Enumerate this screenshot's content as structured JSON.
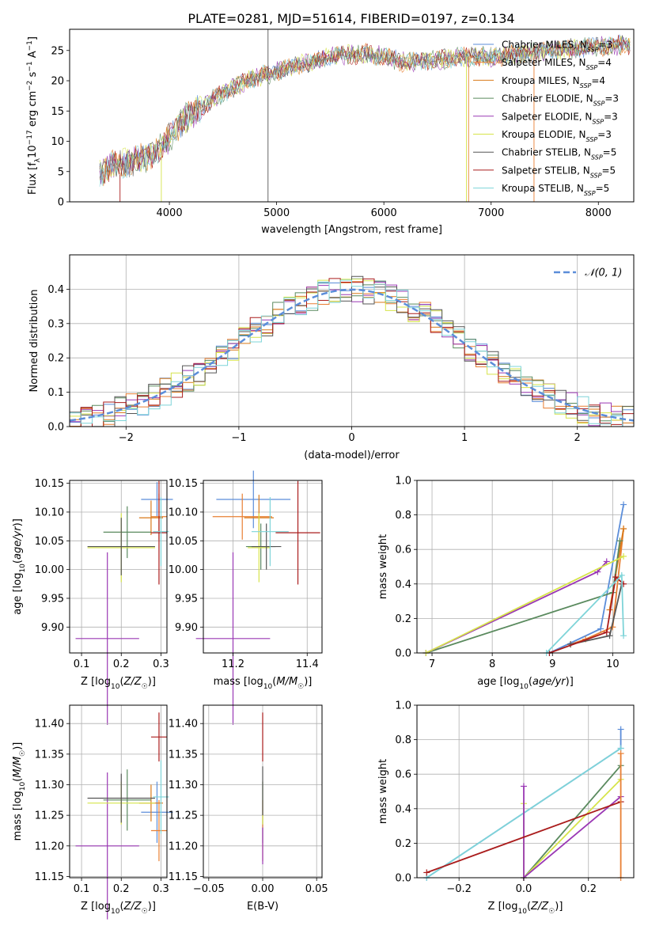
{
  "figure": {
    "title": "PLATE=0281, MJD=51614, FIBERID=0197, z=0.134"
  },
  "series_styles": [
    {
      "name": "Chabrier MILES, N_SSP=3",
      "color": "#5b8dd9"
    },
    {
      "name": "Salpeter MILES, N_SSP=4",
      "color": "#e87f33"
    },
    {
      "name": "Kroupa MILES, N_SSP=4",
      "color": "#d97a1a"
    },
    {
      "name": "Chabrier ELODIE, N_SSP=3",
      "color": "#5a8a5e"
    },
    {
      "name": "Salpeter ELODIE, N_SSP=3",
      "color": "#9a38b4"
    },
    {
      "name": "Kroupa ELODIE, N_SSP=3",
      "color": "#d6e44a"
    },
    {
      "name": "Chabrier STELIB, N_SSP=5",
      "color": "#555555"
    },
    {
      "name": "Salpeter STELIB, N_SSP=5",
      "color": "#aa1c1c"
    },
    {
      "name": "Kroupa STELIB, N_SSP=5",
      "color": "#7ed4d8"
    }
  ],
  "chart_data": [
    {
      "id": "spectrum",
      "type": "line",
      "xlabel": "wavelength [Angstrom, rest frame]",
      "ylabel": "Flux [f_λ10^-17 erg cm^-2 s^-1 A^-1]",
      "xlim": [
        3070,
        8330
      ],
      "ylim": [
        0,
        28.5
      ],
      "xticks": [
        4000,
        5000,
        6000,
        7000,
        8000
      ],
      "yticks": [
        0,
        5,
        10,
        15,
        20,
        25
      ],
      "grid": false,
      "legend_position": "upper-right",
      "legend": [
        {
          "prefix": "Chabrier MILES, N",
          "sub": "SSP",
          "suffix": "=3"
        },
        {
          "prefix": "Salpeter MILES, N",
          "sub": "SSP",
          "suffix": "=4"
        },
        {
          "prefix": "Kroupa MILES, N",
          "sub": "SSP",
          "suffix": "=4"
        },
        {
          "prefix": "Chabrier ELODIE, N",
          "sub": "SSP",
          "suffix": "=3"
        },
        {
          "prefix": "Salpeter ELODIE, N",
          "sub": "SSP",
          "suffix": "=3"
        },
        {
          "prefix": "Kroupa ELODIE, N",
          "sub": "SSP",
          "suffix": "=3"
        },
        {
          "prefix": "Chabrier STELIB, N",
          "sub": "SSP",
          "suffix": "=5"
        },
        {
          "prefix": "Salpeter STELIB, N",
          "sub": "SSP",
          "suffix": "=5"
        },
        {
          "prefix": "Kroupa STELIB, N",
          "sub": "SSP",
          "suffix": "=5"
        }
      ],
      "continuum": {
        "x": [
          3350,
          3450,
          3600,
          3750,
          3900,
          4000,
          4100,
          4200,
          4300,
          4400,
          4600,
          4800,
          5000,
          5200,
          5500,
          5800,
          6000,
          6200,
          6500,
          6800,
          7000,
          7300,
          7600,
          7900,
          8300
        ],
        "y": [
          4.5,
          5.8,
          6.5,
          7.2,
          8.5,
          10.5,
          13,
          14.5,
          15.5,
          17,
          19,
          20.5,
          21.5,
          22.5,
          24,
          24.5,
          24,
          23,
          23.5,
          24,
          24,
          24.5,
          25,
          25.5,
          26
        ]
      },
      "spikes": [
        {
          "x": 3540,
          "y_from": 4.5,
          "y_to": 0,
          "series": 7
        },
        {
          "x": 3925,
          "y_from": 9,
          "y_to": 0,
          "series": 5
        },
        {
          "x": 4920,
          "y_from": 20,
          "y_to": 0,
          "series": 6
        },
        {
          "x": 4920,
          "y_from": 20,
          "y_to": 28.5,
          "series": 6
        },
        {
          "x": 6770,
          "y_from": 24,
          "y_to": 0,
          "series": 5
        },
        {
          "x": 6790,
          "y_from": 24,
          "y_to": 0,
          "series": 1
        },
        {
          "x": 7400,
          "y_from": 24.5,
          "y_to": 0,
          "series": 1
        }
      ]
    },
    {
      "id": "residual-histogram",
      "type": "bar",
      "xlabel": "(data-model)/error",
      "ylabel": "Normed distribution",
      "xlim": [
        -2.5,
        2.5
      ],
      "ylim": [
        0,
        0.5
      ],
      "xticks": [
        -2,
        -1,
        0,
        1,
        2
      ],
      "yticks": [
        0.0,
        0.1,
        0.2,
        0.3,
        0.4
      ],
      "grid": true,
      "legend_position": "upper-right",
      "legend": [
        {
          "label": "𝒩(0, 1)"
        }
      ],
      "bin_width": 0.1,
      "approx_profile": "normal(0,1) with per-series scatter of about ±0.04"
    },
    {
      "id": "age-vs-Z",
      "type": "scatter",
      "xlabel": "Z [log10(Z/Z☉)]",
      "ylabel": "age  [log10(age/yr)]",
      "xlim": [
        0.07,
        0.315
      ],
      "ylim": [
        9.855,
        10.155
      ],
      "xticks": [
        0.1,
        0.2,
        0.3
      ],
      "yticks": [
        9.9,
        9.95,
        10.0,
        10.05,
        10.1,
        10.15
      ],
      "grid": true,
      "errorbars": [
        {
          "series": 0,
          "x": 0.29,
          "xerr": 0.04,
          "y": 10.122,
          "yerr": 0.03
        },
        {
          "series": 1,
          "x": 0.295,
          "xerr": 0.02,
          "y": 10.092,
          "yerr": 0.04
        },
        {
          "series": 2,
          "x": 0.275,
          "xerr": 0.03,
          "y": 10.09,
          "yerr": 0.03
        },
        {
          "series": 3,
          "x": 0.215,
          "xerr": 0.06,
          "y": 10.065,
          "yerr": 0.045
        },
        {
          "series": 4,
          "x": 0.165,
          "xerr": 0.08,
          "y": 9.88,
          "yerr": 0.15
        },
        {
          "series": 5,
          "x": 0.2,
          "xerr": 0.085,
          "y": 10.038,
          "yerr": 0.06
        },
        {
          "series": 6,
          "x": 0.2,
          "xerr": 0.085,
          "y": 10.04,
          "yerr": 0.05
        },
        {
          "series": 7,
          "x": 0.295,
          "xerr": 0.02,
          "y": 10.064,
          "yerr": 0.09
        },
        {
          "series": 8,
          "x": 0.3,
          "xerr": 0.02,
          "y": 10.066,
          "yerr": 0.06
        }
      ]
    },
    {
      "id": "age-vs-mass",
      "type": "scatter",
      "xlabel": "mass [log10(M/M☉)]",
      "ylabel": "",
      "xlim": [
        11.12,
        11.44
      ],
      "ylim": [
        9.855,
        10.155
      ],
      "xticks": [
        11.2,
        11.4
      ],
      "yticks": [
        9.9,
        9.95,
        10.0,
        10.05,
        10.1,
        10.15
      ],
      "grid": true,
      "errorbars": [
        {
          "series": 0,
          "x": 11.255,
          "xerr": 0.1,
          "y": 10.122,
          "yerr": 0.05
        },
        {
          "series": 1,
          "x": 11.225,
          "xerr": 0.08,
          "y": 10.092,
          "yerr": 0.04
        },
        {
          "series": 2,
          "x": 11.27,
          "xerr": 0.04,
          "y": 10.09,
          "yerr": 0.04
        },
        {
          "series": 3,
          "x": 11.275,
          "xerr": 0.04,
          "y": 10.04,
          "yerr": 0.04
        },
        {
          "series": 4,
          "x": 11.2,
          "xerr": 0.1,
          "y": 9.88,
          "yerr": 0.15
        },
        {
          "series": 5,
          "x": 11.27,
          "xerr": 0.03,
          "y": 10.038,
          "yerr": 0.06
        },
        {
          "series": 6,
          "x": 11.29,
          "xerr": 0.04,
          "y": 10.04,
          "yerr": 0.04
        },
        {
          "series": 7,
          "x": 11.375,
          "xerr": 0.06,
          "y": 10.064,
          "yerr": 0.09
        },
        {
          "series": 8,
          "x": 11.3,
          "xerr": 0.05,
          "y": 10.066,
          "yerr": 0.06
        }
      ]
    },
    {
      "id": "mass-weight-vs-age",
      "type": "line",
      "xlabel": "age  [log10(age/yr)]",
      "ylabel": "mass weight",
      "xlim": [
        6.75,
        10.35
      ],
      "ylim": [
        0,
        1.0
      ],
      "xticks": [
        7,
        8,
        9,
        10
      ],
      "yticks": [
        0.0,
        0.2,
        0.4,
        0.6,
        0.8,
        1.0
      ],
      "grid": true,
      "series": [
        {
          "series": 0,
          "x": [
            8.95,
            9.8,
            10.18
          ],
          "y": [
            0.0,
            0.14,
            0.86
          ]
        },
        {
          "series": 1,
          "x": [
            9.3,
            9.55,
            10.0,
            10.18
          ],
          "y": [
            0.05,
            0.08,
            0.15,
            0.72
          ]
        },
        {
          "series": 2,
          "x": [
            9.95,
            10.18
          ],
          "y": [
            0.25,
            0.72
          ]
        },
        {
          "series": 3,
          "x": [
            6.9,
            10.0,
            10.12
          ],
          "y": [
            0.0,
            0.35,
            0.65
          ]
        },
        {
          "series": 4,
          "x": [
            6.9,
            9.75,
            9.9
          ],
          "y": [
            0.0,
            0.47,
            0.53
          ]
        },
        {
          "series": 5,
          "x": [
            6.9,
            10.18
          ],
          "y": [
            0.0,
            0.56
          ]
        },
        {
          "series": 6,
          "x": [
            9.3,
            9.95,
            10.15
          ],
          "y": [
            0.05,
            0.1,
            0.4
          ]
        },
        {
          "series": 7,
          "x": [
            8.95,
            9.9,
            10.05,
            10.18
          ],
          "y": [
            0.0,
            0.12,
            0.44,
            0.4
          ]
        },
        {
          "series": 8,
          "x": [
            8.9,
            10.15,
            10.18
          ],
          "y": [
            0.0,
            0.45,
            0.1
          ]
        }
      ]
    },
    {
      "id": "mass-vs-Z",
      "type": "scatter",
      "xlabel": "Z [log10(Z/Z☉)]",
      "ylabel": "mass [log10(M/M☉)]",
      "xlim": [
        0.07,
        0.315
      ],
      "ylim": [
        11.148,
        11.43
      ],
      "xticks": [
        0.1,
        0.2,
        0.3
      ],
      "yticks": [
        11.15,
        11.2,
        11.25,
        11.3,
        11.35,
        11.4
      ],
      "grid": true,
      "errorbars": [
        {
          "series": 0,
          "x": 0.29,
          "xerr": 0.04,
          "y": 11.255,
          "yerr": 0.05
        },
        {
          "series": 1,
          "x": 0.295,
          "xerr": 0.02,
          "y": 11.225,
          "yerr": 0.05
        },
        {
          "series": 2,
          "x": 0.275,
          "xerr": 0.03,
          "y": 11.27,
          "yerr": 0.03
        },
        {
          "series": 3,
          "x": 0.215,
          "xerr": 0.06,
          "y": 11.275,
          "yerr": 0.05
        },
        {
          "series": 4,
          "x": 0.165,
          "xerr": 0.08,
          "y": 11.2,
          "yerr": 0.12
        },
        {
          "series": 5,
          "x": 0.2,
          "xerr": 0.085,
          "y": 11.27,
          "yerr": 0.035
        },
        {
          "series": 6,
          "x": 0.2,
          "xerr": 0.085,
          "y": 11.278,
          "yerr": 0.04
        },
        {
          "series": 7,
          "x": 0.295,
          "xerr": 0.02,
          "y": 11.378,
          "yerr": 0.04
        },
        {
          "series": 8,
          "x": 0.3,
          "xerr": 0.02,
          "y": 11.28,
          "yerr": 0.06
        }
      ]
    },
    {
      "id": "mass-vs-EBV",
      "type": "scatter",
      "xlabel": "E(B-V)",
      "ylabel": "",
      "xlim": [
        -0.055,
        0.055
      ],
      "ylim": [
        11.148,
        11.43
      ],
      "xticks": [
        -0.05,
        0.0,
        0.05
      ],
      "xtick_labels": [
        "−0.05",
        "0.00",
        "0.05"
      ],
      "yticks": [
        11.15,
        11.2,
        11.25,
        11.3,
        11.35,
        11.4
      ],
      "grid": true,
      "errorbars": [
        {
          "series": 0,
          "x": 0.0,
          "xerr": 0.0,
          "y": 11.255,
          "yerr": 0.05
        },
        {
          "series": 1,
          "x": 0.0,
          "xerr": 0.0,
          "y": 11.225,
          "yerr": 0.05
        },
        {
          "series": 4,
          "x": 0.0,
          "xerr": 0.0,
          "y": 11.2,
          "yerr": 0.03
        },
        {
          "series": 5,
          "x": 0.0,
          "xerr": 0.0,
          "y": 11.27,
          "yerr": 0.035
        },
        {
          "series": 7,
          "x": 0.0,
          "xerr": 0.0,
          "y": 11.378,
          "yerr": 0.04
        },
        {
          "series": 6,
          "x": 0.0,
          "xerr": 0.0,
          "y": 11.29,
          "yerr": 0.04
        }
      ]
    },
    {
      "id": "mass-weight-vs-Z",
      "type": "line",
      "xlabel": "Z [log10(Z/Z☉)]",
      "ylabel": "mass weight",
      "xlim": [
        -0.33,
        0.34
      ],
      "ylim": [
        0,
        1.0
      ],
      "xticks": [
        -0.2,
        0.0,
        0.2
      ],
      "xtick_labels": [
        "−0.2",
        "0.0",
        "0.2"
      ],
      "yticks": [
        0.0,
        0.2,
        0.4,
        0.6,
        0.8,
        1.0
      ],
      "grid": true,
      "series": [
        {
          "series": 0,
          "x": [
            -0.3,
            0.3,
            0.3
          ],
          "y": [
            0.0,
            0.75,
            0.86
          ]
        },
        {
          "series": 8,
          "x": [
            -0.3,
            0.3
          ],
          "y": [
            0.0,
            0.75
          ]
        },
        {
          "series": 3,
          "x": [
            0.0,
            0.3
          ],
          "y": [
            0.0,
            0.65
          ]
        },
        {
          "series": 5,
          "x": [
            0.0,
            0.0,
            0.3
          ],
          "y": [
            0.43,
            0.0,
            0.57
          ]
        },
        {
          "series": 4,
          "x": [
            0.0,
            0.0,
            0.3
          ],
          "y": [
            0.53,
            0.0,
            0.47
          ]
        },
        {
          "series": 7,
          "x": [
            -0.3,
            0.3
          ],
          "y": [
            0.03,
            0.44
          ]
        },
        {
          "series": 1,
          "x": [
            0.3,
            0.3
          ],
          "y": [
            0.0,
            0.72
          ]
        }
      ]
    }
  ]
}
